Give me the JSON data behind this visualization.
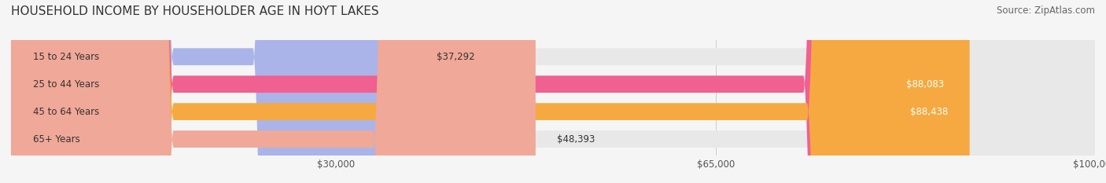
{
  "title": "HOUSEHOLD INCOME BY HOUSEHOLDER AGE IN HOYT LAKES",
  "source": "Source: ZipAtlas.com",
  "categories": [
    "15 to 24 Years",
    "25 to 44 Years",
    "45 to 64 Years",
    "65+ Years"
  ],
  "values": [
    37292,
    88083,
    88438,
    48393
  ],
  "bar_colors": [
    "#aab4e8",
    "#f06090",
    "#f5a940",
    "#f0a898"
  ],
  "bar_bg_colors": [
    "#f0f0f0",
    "#f0f0f0",
    "#f0f0f0",
    "#f0f0f0"
  ],
  "value_labels": [
    "$37,292",
    "$88,083",
    "$88,438",
    "$48,393"
  ],
  "xmin": 0,
  "xmax": 100000,
  "xticks": [
    30000,
    65000,
    100000
  ],
  "xtick_labels": [
    "$30,000",
    "$65,000",
    "$100,000"
  ],
  "title_fontsize": 11,
  "source_fontsize": 8.5,
  "label_fontsize": 8.5,
  "value_fontsize": 8.5,
  "bar_height": 0.62,
  "background_color": "#f5f5f5"
}
